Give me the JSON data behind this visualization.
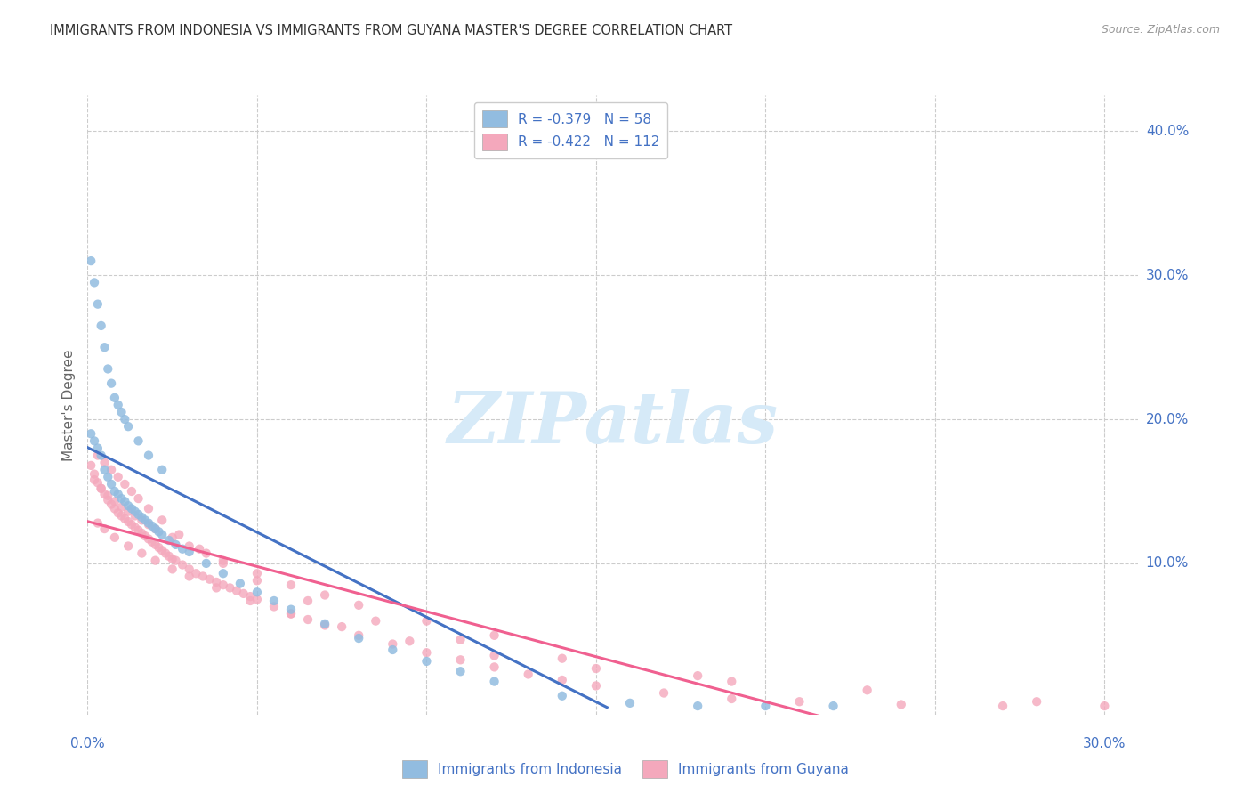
{
  "title": "IMMIGRANTS FROM INDONESIA VS IMMIGRANTS FROM GUYANA MASTER'S DEGREE CORRELATION CHART",
  "source": "Source: ZipAtlas.com",
  "ylabel": "Master's Degree",
  "yticks_labels": [
    "10.0%",
    "20.0%",
    "30.0%",
    "40.0%"
  ],
  "yticks_vals": [
    0.1,
    0.2,
    0.3,
    0.4
  ],
  "xtick_label_left": "0.0%",
  "xtick_label_right": "30.0%",
  "xlim": [
    0.0,
    0.31
  ],
  "ylim": [
    -0.005,
    0.425
  ],
  "legend_indo": "R = -0.379   N = 58",
  "legend_guy": "R = -0.422   N = 112",
  "legend_label_indo": "Immigrants from Indonesia",
  "legend_label_guy": "Immigrants from Guyana",
  "color_indo_scatter": "#92bce0",
  "color_guy_scatter": "#f4a8bc",
  "color_indo_line": "#4472c4",
  "color_guy_line": "#f06090",
  "color_text_blue": "#4472c4",
  "color_title": "#333333",
  "color_source": "#999999",
  "watermark_text": "ZIPatlas",
  "watermark_color": "#d6eaf8",
  "background": "#ffffff",
  "grid_color": "#cccccc",
  "indo_x": [
    0.001,
    0.002,
    0.003,
    0.004,
    0.005,
    0.006,
    0.007,
    0.008,
    0.009,
    0.01,
    0.011,
    0.012,
    0.013,
    0.014,
    0.015,
    0.016,
    0.017,
    0.018,
    0.019,
    0.02,
    0.021,
    0.022,
    0.024,
    0.026,
    0.028,
    0.03,
    0.035,
    0.04,
    0.045,
    0.05,
    0.055,
    0.06,
    0.07,
    0.08,
    0.09,
    0.1,
    0.11,
    0.12,
    0.14,
    0.16,
    0.18,
    0.2,
    0.22,
    0.001,
    0.002,
    0.003,
    0.004,
    0.005,
    0.006,
    0.007,
    0.008,
    0.009,
    0.01,
    0.011,
    0.012,
    0.015,
    0.018,
    0.022
  ],
  "indo_y": [
    0.19,
    0.185,
    0.18,
    0.175,
    0.165,
    0.16,
    0.155,
    0.15,
    0.148,
    0.145,
    0.143,
    0.14,
    0.138,
    0.136,
    0.134,
    0.132,
    0.13,
    0.128,
    0.126,
    0.124,
    0.122,
    0.12,
    0.116,
    0.113,
    0.11,
    0.108,
    0.1,
    0.093,
    0.086,
    0.08,
    0.074,
    0.068,
    0.058,
    0.048,
    0.04,
    0.032,
    0.025,
    0.018,
    0.008,
    0.003,
    0.001,
    0.001,
    0.001,
    0.31,
    0.295,
    0.28,
    0.265,
    0.25,
    0.235,
    0.225,
    0.215,
    0.21,
    0.205,
    0.2,
    0.195,
    0.185,
    0.175,
    0.165
  ],
  "guy_x": [
    0.001,
    0.002,
    0.003,
    0.004,
    0.005,
    0.006,
    0.007,
    0.008,
    0.009,
    0.01,
    0.011,
    0.012,
    0.013,
    0.014,
    0.015,
    0.016,
    0.017,
    0.018,
    0.019,
    0.02,
    0.021,
    0.022,
    0.023,
    0.024,
    0.025,
    0.026,
    0.028,
    0.03,
    0.032,
    0.034,
    0.036,
    0.038,
    0.04,
    0.042,
    0.044,
    0.046,
    0.048,
    0.05,
    0.055,
    0.06,
    0.065,
    0.07,
    0.08,
    0.09,
    0.1,
    0.11,
    0.12,
    0.13,
    0.14,
    0.15,
    0.17,
    0.19,
    0.21,
    0.24,
    0.27,
    0.3,
    0.002,
    0.004,
    0.006,
    0.008,
    0.01,
    0.012,
    0.014,
    0.016,
    0.018,
    0.02,
    0.025,
    0.03,
    0.035,
    0.04,
    0.05,
    0.06,
    0.07,
    0.08,
    0.1,
    0.12,
    0.003,
    0.005,
    0.007,
    0.009,
    0.011,
    0.013,
    0.015,
    0.018,
    0.022,
    0.027,
    0.033,
    0.04,
    0.05,
    0.065,
    0.085,
    0.11,
    0.14,
    0.18,
    0.23,
    0.28,
    0.003,
    0.005,
    0.008,
    0.012,
    0.016,
    0.02,
    0.025,
    0.03,
    0.038,
    0.048,
    0.06,
    0.075,
    0.095,
    0.12,
    0.15,
    0.19
  ],
  "guy_y": [
    0.168,
    0.162,
    0.156,
    0.152,
    0.148,
    0.144,
    0.141,
    0.138,
    0.135,
    0.133,
    0.131,
    0.129,
    0.127,
    0.125,
    0.123,
    0.121,
    0.119,
    0.117,
    0.115,
    0.113,
    0.111,
    0.109,
    0.107,
    0.105,
    0.103,
    0.102,
    0.099,
    0.096,
    0.093,
    0.091,
    0.089,
    0.087,
    0.085,
    0.083,
    0.081,
    0.079,
    0.077,
    0.075,
    0.07,
    0.065,
    0.061,
    0.057,
    0.05,
    0.044,
    0.038,
    0.033,
    0.028,
    0.023,
    0.019,
    0.015,
    0.01,
    0.006,
    0.004,
    0.002,
    0.001,
    0.001,
    0.158,
    0.152,
    0.147,
    0.143,
    0.139,
    0.136,
    0.133,
    0.13,
    0.127,
    0.124,
    0.118,
    0.112,
    0.107,
    0.102,
    0.093,
    0.085,
    0.078,
    0.071,
    0.06,
    0.05,
    0.175,
    0.17,
    0.165,
    0.16,
    0.155,
    0.15,
    0.145,
    0.138,
    0.13,
    0.12,
    0.11,
    0.1,
    0.088,
    0.074,
    0.06,
    0.047,
    0.034,
    0.022,
    0.012,
    0.004,
    0.128,
    0.124,
    0.118,
    0.112,
    0.107,
    0.102,
    0.096,
    0.091,
    0.083,
    0.074,
    0.065,
    0.056,
    0.046,
    0.036,
    0.027,
    0.018
  ]
}
